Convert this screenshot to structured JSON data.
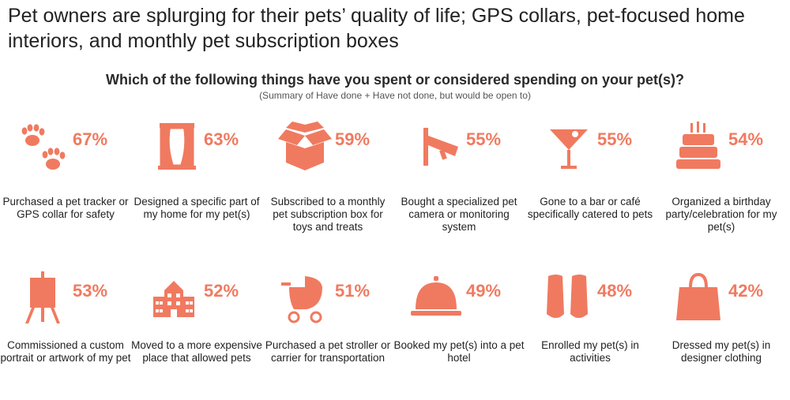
{
  "headline": "Pet owners are splurging for their pets’ quality of life; GPS collars, pet-focused home interiors, and monthly pet subscription boxes",
  "question": "Which of the following things have you spent or considered spending on your pet(s)?",
  "subtitle": "(Summary of Have done + Have not done, but would be open to)",
  "icon_color": "#f07a60",
  "chart_data": {
    "type": "table",
    "categories": [
      "Purchased a pet tracker or GPS collar for safety",
      "Designed a specific part of my home for my pet(s)",
      "Subscribed to a monthly pet subscription box for toys and treats",
      "Bought a specialized pet camera or monitoring system",
      "Gone to a bar or café specifically catered to pets",
      "Organized a birthday party/celebration for my pet(s)",
      "Commissioned a custom portrait or artwork of my pet",
      "Moved to a more expensive place that allowed pets",
      "Purchased a pet stroller or carrier for transportation",
      "Booked my pet(s) into a pet hotel",
      "Enrolled my pet(s) in activities",
      "Dressed my pet(s) in designer clothing"
    ],
    "values": [
      67,
      63,
      59,
      55,
      55,
      54,
      53,
      52,
      51,
      49,
      48,
      42
    ],
    "unit": "%"
  },
  "items": [
    {
      "pct": "67%",
      "label": "Purchased a pet tracker or GPS collar for safety",
      "icon": "paw-prints-icon"
    },
    {
      "pct": "63%",
      "label": "Designed a specific part of my home for my pet(s)",
      "icon": "curtained-window-icon"
    },
    {
      "pct": "59%",
      "label": "Subscribed to a monthly pet subscription box for toys and treats",
      "icon": "open-box-icon"
    },
    {
      "pct": "55%",
      "label": "Bought a specialized pet camera or monitoring system",
      "icon": "security-camera-icon"
    },
    {
      "pct": "55%",
      "label": "Gone to a bar or café specifically catered to pets",
      "icon": "cocktail-glass-icon"
    },
    {
      "pct": "54%",
      "label": "Organized a birthday party/celebration for my pet(s)",
      "icon": "birthday-cake-icon"
    },
    {
      "pct": "53%",
      "label": "Commissioned a custom portrait or artwork of my pet",
      "icon": "easel-icon"
    },
    {
      "pct": "52%",
      "label": "Moved to a more expensive place that allowed pets",
      "icon": "building-icon"
    },
    {
      "pct": "51%",
      "label": "Purchased a pet stroller or carrier for transportation",
      "icon": "stroller-icon"
    },
    {
      "pct": "49%",
      "label": "Booked my pet(s) into a pet hotel",
      "icon": "service-bell-icon"
    },
    {
      "pct": "48%",
      "label": "Enrolled my pet(s) in activities",
      "icon": "swim-fins-icon"
    },
    {
      "pct": "42%",
      "label": "Dressed my pet(s) in designer clothing",
      "icon": "handbag-icon"
    }
  ]
}
